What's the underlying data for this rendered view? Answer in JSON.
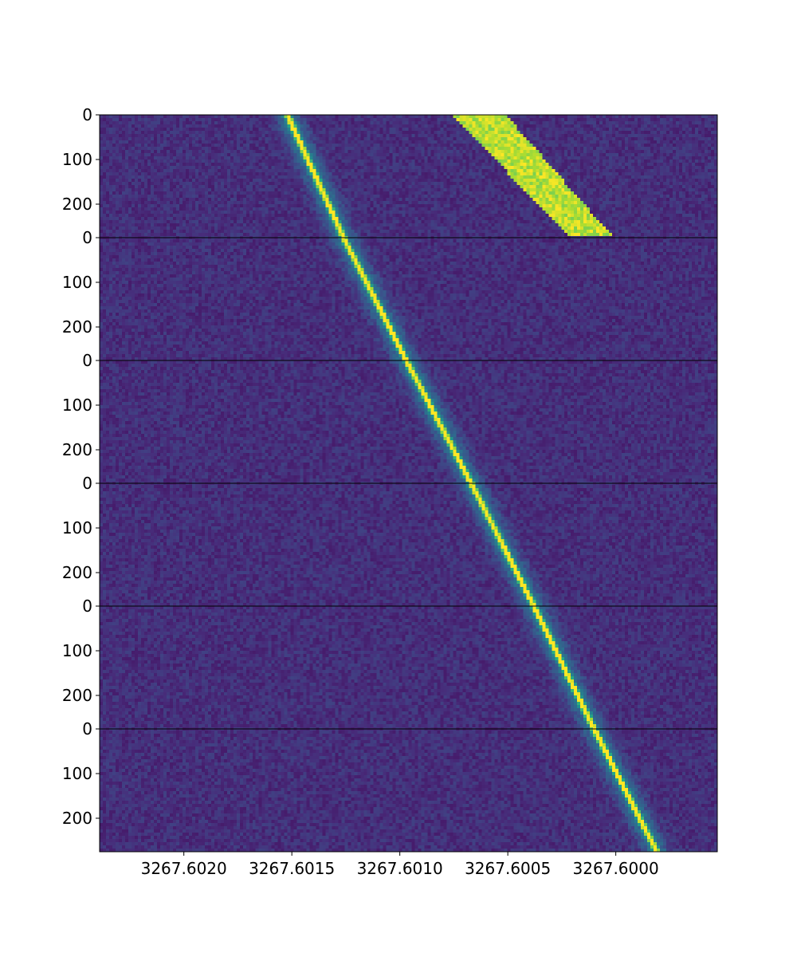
{
  "chart_data": {
    "type": "heatmap",
    "title": "",
    "xlabel": "",
    "ylabel": "",
    "colormap": "viridis",
    "x_axis": {
      "direction": "decreasing",
      "xlim": [
        3267.60239,
        3267.59953
      ],
      "ticks": [
        3267.602,
        3267.6015,
        3267.601,
        3267.6005,
        3267.6
      ],
      "tick_labels": [
        "3267.6020",
        "3267.6015",
        "3267.6010",
        "3267.6005",
        "3267.6000"
      ]
    },
    "panels": [
      {
        "ylim": [
          0,
          275
        ],
        "y_ticks": [
          0,
          100,
          200
        ],
        "y_tick_labels": [
          "0",
          "100",
          "200"
        ]
      },
      {
        "ylim": [
          0,
          275
        ],
        "y_ticks": [
          0,
          100,
          200
        ],
        "y_tick_labels": [
          "0",
          "100",
          "200"
        ]
      },
      {
        "ylim": [
          0,
          275
        ],
        "y_ticks": [
          0,
          100,
          200
        ],
        "y_tick_labels": [
          "0",
          "100",
          "200"
        ]
      },
      {
        "ylim": [
          0,
          275
        ],
        "y_ticks": [
          0,
          100,
          200
        ],
        "y_tick_labels": [
          "0",
          "100",
          "200"
        ]
      },
      {
        "ylim": [
          0,
          275
        ],
        "y_ticks": [
          0,
          100,
          200
        ],
        "y_tick_labels": [
          "0",
          "100",
          "200"
        ]
      },
      {
        "ylim": [
          0,
          275
        ],
        "y_ticks": [
          0,
          100,
          200
        ],
        "y_tick_labels": [
          "0",
          "100",
          "200"
        ]
      }
    ],
    "features": [
      {
        "name": "",
        "kind": "drifting line",
        "peak_intensity": 0.95,
        "core_width": 8.5e-06,
        "halo_width": 4e-05,
        "track": [
          {
            "panel": 0,
            "row": 0,
            "x": 3267.60152
          },
          {
            "panel": 1,
            "row": 0,
            "x": 3267.60126
          },
          {
            "panel": 2,
            "row": 0,
            "x": 3267.60097
          },
          {
            "panel": 3,
            "row": 0,
            "x": 3267.60067
          },
          {
            "panel": 4,
            "row": 0,
            "x": 3267.60038
          },
          {
            "panel": 5,
            "row": 0,
            "x": 3267.6001
          },
          {
            "panel": 5,
            "row": 275,
            "x": 3267.59981
          }
        ]
      },
      {
        "name": "",
        "kind": "saturated band",
        "panel": 0,
        "intensity_range": [
          0.8,
          1.0
        ],
        "top_x_range": [
          3267.60076,
          3267.60051
        ],
        "bottom_x_range": [
          3267.60021,
          3267.60001
        ]
      }
    ],
    "background": {
      "intensity_mean": 0.14,
      "intensity_noise": 0.06
    },
    "grid": false
  }
}
